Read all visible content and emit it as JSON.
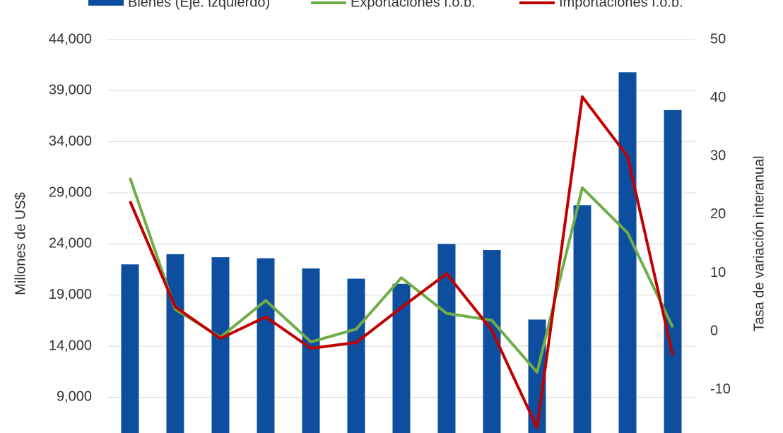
{
  "chart_data": {
    "type": "bar-line",
    "y_label": "Millones de US$",
    "y2_label": "Tasa de variación interanual",
    "categories": [
      null,
      null,
      null,
      null,
      null,
      null,
      null,
      null,
      null,
      null,
      null,
      null,
      null
    ],
    "series": [
      {
        "name": "Bienes (Eje. izquierdo)",
        "type": "bar",
        "color": "#0d4f9e",
        "values": [
          22000,
          23000,
          22700,
          22600,
          21600,
          20600,
          20100,
          24000,
          23400,
          16600,
          27800,
          40800,
          37100
        ]
      },
      {
        "name": "Exportaciones f.o.b.",
        "type": "line",
        "axis": "y2",
        "color": "#70ad47",
        "values": [
          26.3,
          3.8,
          -1.0,
          5.3,
          -1.8,
          0.4,
          9.2,
          3.1,
          1.9,
          -7.0,
          24.6,
          16.9,
          0.7
        ]
      },
      {
        "name": "Importaciones f.o.b.",
        "type": "line",
        "axis": "y2",
        "color": "#c00000",
        "values": [
          22.3,
          4.2,
          -1.2,
          2.5,
          -2.9,
          -1.9,
          4.1,
          9.9,
          0.2,
          -16.5,
          40.2,
          30.0,
          -4.1
        ]
      }
    ],
    "ylim": [
      5500,
      44000
    ],
    "yticks": [
      {
        "value": 9000,
        "label": "9,000"
      },
      {
        "value": 14000,
        "label": "14,000"
      },
      {
        "value": 19000,
        "label": "19,000"
      },
      {
        "value": 24000,
        "label": "24,000"
      },
      {
        "value": 29000,
        "label": "29,000"
      },
      {
        "value": 34000,
        "label": "34,000"
      },
      {
        "value": 39000,
        "label": "39,000"
      },
      {
        "value": 44000,
        "label": "44,000"
      }
    ],
    "y2lim": [
      -17.4,
      50
    ],
    "y2ticks": [
      -10,
      0,
      10,
      20,
      30,
      40,
      50
    ],
    "grid": true
  }
}
